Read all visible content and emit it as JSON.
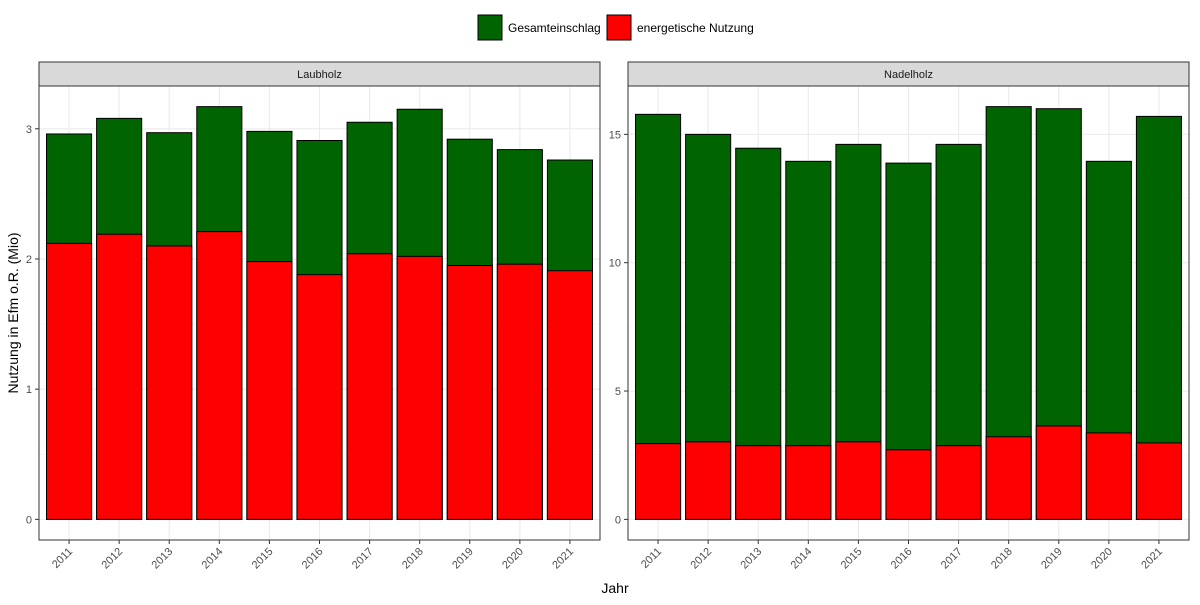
{
  "chart_data": {
    "type": "bar",
    "stacking": "overlay",
    "xlabel": "Jahr",
    "ylabel": "Nutzung in Efm o.R. (Mio)",
    "legend": {
      "placement": "top",
      "entries": [
        {
          "name": "Gesamteinschlag",
          "color": "#006400"
        },
        {
          "name": "energetische Nutzung",
          "color": "#FF0000"
        }
      ]
    },
    "categories": [
      "2011",
      "2012",
      "2013",
      "2014",
      "2015",
      "2016",
      "2017",
      "2018",
      "2019",
      "2020",
      "2021"
    ],
    "panels": [
      {
        "title": "Laubholz",
        "yticks": [
          0,
          1,
          2,
          3
        ],
        "series": [
          {
            "name": "Gesamteinschlag",
            "values": [
              2.96,
              3.08,
              2.97,
              3.17,
              2.98,
              2.91,
              3.05,
              3.15,
              2.92,
              2.84,
              2.76
            ]
          },
          {
            "name": "energetische Nutzung",
            "values": [
              2.12,
              2.19,
              2.1,
              2.21,
              1.98,
              1.88,
              2.04,
              2.02,
              1.95,
              1.96,
              1.91
            ]
          }
        ]
      },
      {
        "title": "Nadelholz",
        "yticks": [
          0,
          5,
          10,
          15
        ],
        "series": [
          {
            "name": "Gesamteinschlag",
            "values": [
              15.78,
              15.0,
              14.46,
              13.95,
              14.61,
              13.88,
              14.61,
              16.08,
              16.0,
              13.95,
              15.7
            ]
          },
          {
            "name": "energetische Nutzung",
            "values": [
              2.95,
              3.02,
              2.87,
              2.87,
              3.02,
              2.71,
              2.87,
              3.22,
              3.64,
              3.37,
              2.98
            ]
          }
        ]
      }
    ]
  }
}
